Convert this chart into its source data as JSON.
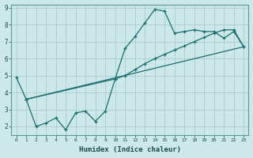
{
  "xlabel": "Humidex (Indice chaleur)",
  "bg_color": "#cce8e8",
  "grid_color": "#aacccc",
  "line_color": "#1a6e6e",
  "xlim": [
    -0.5,
    23.5
  ],
  "ylim": [
    1.5,
    9.2
  ],
  "xticks": [
    0,
    1,
    2,
    3,
    4,
    5,
    6,
    7,
    8,
    9,
    10,
    11,
    12,
    13,
    14,
    15,
    16,
    17,
    18,
    19,
    20,
    21,
    22,
    23
  ],
  "yticks": [
    2,
    3,
    4,
    5,
    6,
    7,
    8,
    9
  ],
  "series1_x": [
    0,
    1,
    2,
    3,
    4,
    5,
    6,
    7,
    8,
    9,
    10,
    11,
    12,
    13,
    14,
    15,
    16,
    17,
    18,
    19,
    20,
    21,
    22,
    23
  ],
  "series1_y": [
    4.9,
    3.6,
    2.0,
    2.2,
    2.5,
    1.8,
    2.8,
    2.9,
    2.3,
    2.9,
    4.8,
    6.6,
    7.3,
    8.1,
    8.9,
    8.8,
    7.5,
    7.6,
    7.7,
    7.6,
    7.6,
    7.2,
    7.6,
    6.7
  ],
  "series2_x": [
    1,
    10,
    11,
    12,
    13,
    14,
    15,
    16,
    17,
    18,
    19,
    20,
    21,
    22,
    23
  ],
  "series2_y": [
    3.6,
    4.8,
    5.0,
    5.35,
    5.7,
    6.0,
    6.25,
    6.5,
    6.75,
    7.0,
    7.25,
    7.5,
    7.7,
    7.7,
    6.7
  ],
  "series3_x": [
    1,
    23
  ],
  "series3_y": [
    3.6,
    6.7
  ]
}
